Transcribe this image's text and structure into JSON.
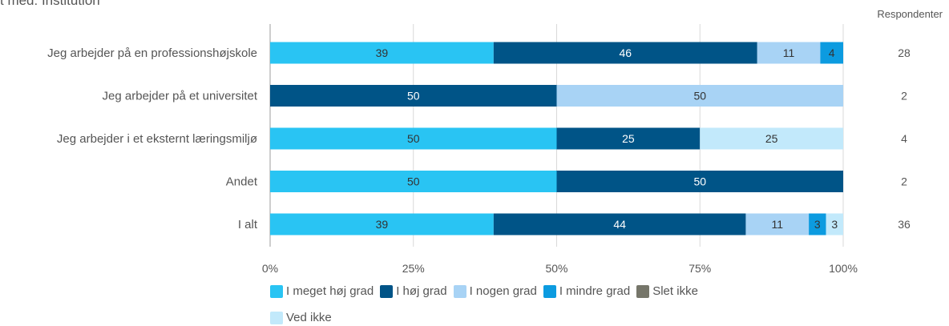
{
  "header": {
    "title_fragment": "t med: Institution",
    "respondents_label": "Respondenter"
  },
  "chart_data": {
    "type": "bar",
    "orientation": "horizontal",
    "stacked": true,
    "percent": true,
    "categories": [
      "Jeg arbejder på en professionshøjskole",
      "Jeg arbejder på et universitet",
      "Jeg arbejder i et eksternt læringsmiljø",
      "Andet",
      "I alt"
    ],
    "series": [
      {
        "name": "I meget høj grad",
        "color": "#29C4F3",
        "values": [
          39,
          0,
          50,
          50,
          39
        ]
      },
      {
        "name": "I høj grad",
        "color": "#005487",
        "values": [
          46,
          50,
          25,
          50,
          44
        ]
      },
      {
        "name": "I nogen grad",
        "color": "#A8D3F5",
        "values": [
          11,
          50,
          0,
          0,
          11
        ]
      },
      {
        "name": "I mindre grad",
        "color": "#0C9BE0",
        "values": [
          4,
          0,
          0,
          0,
          3
        ]
      },
      {
        "name": "Slet ikke",
        "color": "#76766A",
        "values": [
          0,
          0,
          0,
          0,
          0
        ]
      },
      {
        "name": "Ved ikke",
        "color": "#C2E9FB",
        "values": [
          0,
          0,
          25,
          0,
          3
        ]
      }
    ],
    "respondents": [
      28,
      2,
      4,
      2,
      36
    ],
    "x_ticks": [
      "0%",
      "25%",
      "50%",
      "75%",
      "100%"
    ],
    "xlim": [
      0,
      100
    ],
    "grid": true,
    "legend_position": "bottom"
  }
}
